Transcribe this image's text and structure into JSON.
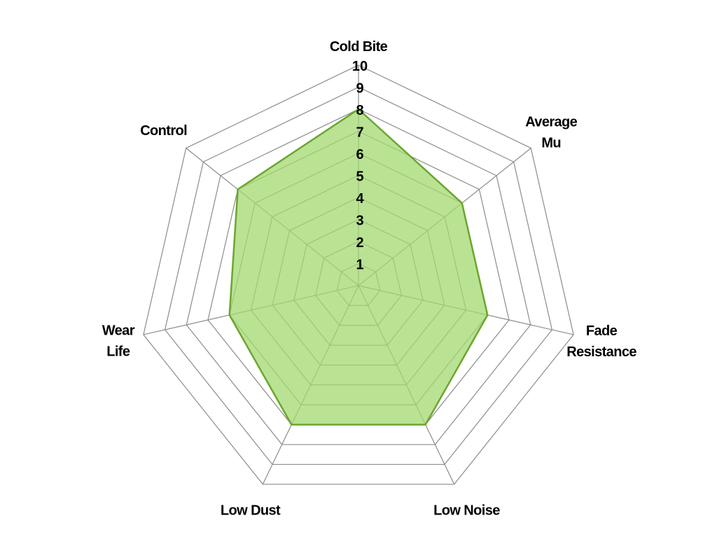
{
  "chart_data": {
    "type": "radar",
    "categories": [
      "Cold Bite",
      "Average Mu",
      "Fade Resistance",
      "Low Noise",
      "Low Dust",
      "Wear Life",
      "Control"
    ],
    "category_lines": [
      [
        "Cold Bite"
      ],
      [
        "Average",
        "Mu"
      ],
      [
        "Fade",
        "Resistance"
      ],
      [
        "Low Noise"
      ],
      [
        "Low Dust"
      ],
      [
        "Wear",
        "Life"
      ],
      [
        "Control"
      ]
    ],
    "values": [
      8,
      6,
      6,
      7,
      7,
      6,
      7
    ],
    "rlim": [
      0,
      10
    ],
    "ticks": [
      "1",
      "2",
      "3",
      "4",
      "5",
      "6",
      "7",
      "8",
      "9",
      "10"
    ],
    "grid": true,
    "legend": "none",
    "colors": {
      "fill": "#a3d86f",
      "stroke": "#6aa62e",
      "grid": "#8c8c8c"
    }
  }
}
